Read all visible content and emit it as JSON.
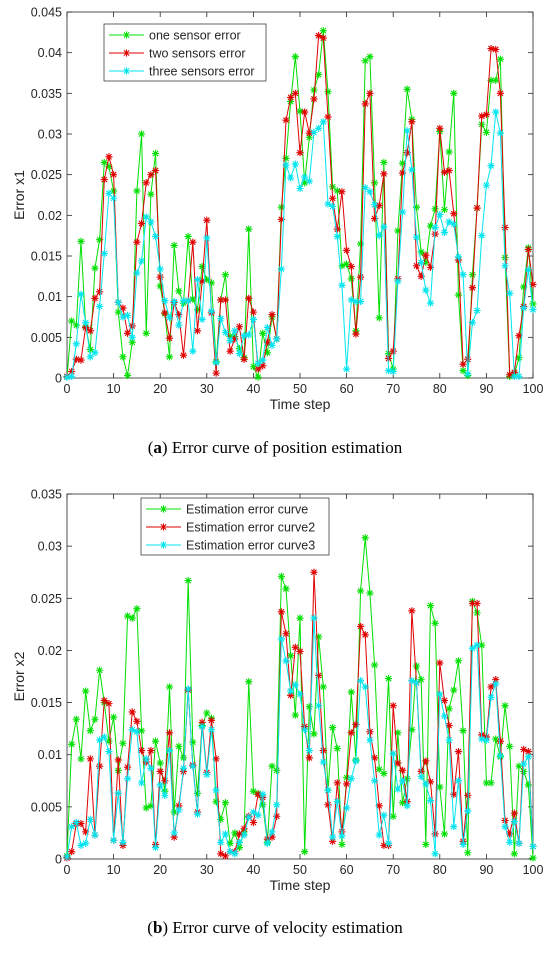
{
  "captions": [
    {
      "tag": "a",
      "text": "Error curve of position estimation"
    },
    {
      "tag": "b",
      "text": "Error curve of velocity estimation"
    }
  ],
  "colors": {
    "green": "#00e000",
    "red": "#e00000",
    "cyan": "#00e5ee",
    "axis": "#262626"
  },
  "chart_data": [
    {
      "type": "line",
      "xlabel": "Time step",
      "ylabel": "Error x1",
      "xlim": [
        0,
        100
      ],
      "ylim": [
        0,
        0.045
      ],
      "xticks": [
        0,
        10,
        20,
        30,
        40,
        50,
        60,
        70,
        80,
        90,
        100
      ],
      "yticks": [
        0,
        0.005,
        0.01,
        0.015,
        0.02,
        0.025,
        0.03,
        0.035,
        0.04,
        0.045
      ],
      "ytick_labels": [
        "0",
        "0.005",
        "0.01",
        "0.015",
        "0.02",
        "0.025",
        "0.03",
        "0.035",
        "0.04",
        "0.045"
      ],
      "legend_position": "top-left",
      "grid": false,
      "series": [
        {
          "name": "one sensor error",
          "color": "green",
          "values": [
            0.0001,
            0.007,
            0.0065,
            0.0168,
            0.0063,
            0.0035,
            0.0135,
            0.017,
            0.0265,
            0.026,
            0.023,
            0.0081,
            0.0026,
            0.0003,
            0.0044,
            0.023,
            0.03,
            0.0055,
            0.0226,
            0.0276,
            0.0113,
            0.0079,
            0.0026,
            0.0163,
            0.0107,
            0.0092,
            0.0174,
            0.0097,
            0.0084,
            0.0137,
            0.0121,
            0.0117,
            0.002,
            0.0096,
            0.0127,
            0.0051,
            0.0051,
            0.0036,
            0.0025,
            0.0183,
            0.0014,
            0.0001,
            0.0055,
            0.0031,
            0.0075,
            0.0048,
            0.021,
            0.027,
            0.034,
            0.0395,
            0.0328,
            0.024,
            0.0296,
            0.0354,
            0.0373,
            0.0427,
            0.0352,
            0.0235,
            0.023,
            0.0138,
            0.014,
            0.0122,
            0.0058,
            0.0165,
            0.039,
            0.0395,
            0.024,
            0.0074,
            0.0265,
            0.003,
            0.0011,
            0.0181,
            0.0264,
            0.0355,
            0.0318,
            0.021,
            0.0155,
            0.0142,
            0.0187,
            0.0208,
            0.0303,
            0.0207,
            0.0278,
            0.035,
            0.0102,
            0.0009,
            0.0003,
            0.0127,
            0.0209,
            0.0312,
            0.0302,
            0.0366,
            0.0366,
            0.0392,
            0.0148,
            0.0002,
            0.0005,
            0.0025,
            0.0112,
            0.016,
            0.0091
          ]
        },
        {
          "name": "two sensors error",
          "color": "red",
          "values": [
            0.0002,
            0.0008,
            0.0023,
            0.0022,
            0.0062,
            0.0058,
            0.0098,
            0.0106,
            0.0244,
            0.0272,
            0.025,
            0.0093,
            0.0086,
            0.0055,
            0.0064,
            0.0167,
            0.019,
            0.024,
            0.025,
            0.0255,
            0.0124,
            0.008,
            0.0049,
            0.0093,
            0.0078,
            0.0028,
            0.0095,
            0.0167,
            0.0058,
            0.0119,
            0.0194,
            0.008,
            0.0006,
            0.0096,
            0.0096,
            0.0033,
            0.0048,
            0.0063,
            0.0023,
            0.0098,
            0.0081,
            0.0011,
            0.0015,
            0.0044,
            0.0078,
            0.0048,
            0.0195,
            0.0317,
            0.0345,
            0.035,
            0.0277,
            0.0327,
            0.0301,
            0.0343,
            0.0421,
            0.0418,
            0.0321,
            0.0221,
            0.0183,
            0.0229,
            0.0157,
            0.0137,
            0.0054,
            0.0124,
            0.0337,
            0.035,
            0.0196,
            0.0212,
            0.0251,
            0.0024,
            0.0033,
            0.0122,
            0.0252,
            0.0277,
            0.0315,
            0.0138,
            0.0125,
            0.0151,
            0.0136,
            0.0177,
            0.0307,
            0.0253,
            0.0255,
            0.0202,
            0.0145,
            0.0017,
            0.0023,
            0.0111,
            0.0209,
            0.0322,
            0.0324,
            0.0405,
            0.0404,
            0.035,
            0.0185,
            0.0004,
            0.0007,
            0.0052,
            0.0088,
            0.0158,
            0.0115
          ]
        },
        {
          "name": "three sensors error",
          "color": "cyan",
          "values": [
            0.0001,
            0.0002,
            0.0042,
            0.0103,
            0.0068,
            0.0026,
            0.0031,
            0.0088,
            0.0153,
            0.0227,
            0.0221,
            0.0093,
            0.0075,
            0.0077,
            0.005,
            0.0129,
            0.0144,
            0.0198,
            0.0192,
            0.0174,
            0.0134,
            0.0095,
            0.0074,
            0.0094,
            0.0065,
            0.0095,
            0.0095,
            0.0033,
            0.0121,
            0.0072,
            0.0172,
            0.0082,
            0.0019,
            0.0073,
            0.0056,
            0.0046,
            0.0058,
            0.003,
            0.0052,
            0.0053,
            0.0072,
            0.0018,
            0.0022,
            0.0062,
            0.004,
            0.0048,
            0.0134,
            0.0262,
            0.0246,
            0.0263,
            0.0233,
            0.0247,
            0.0242,
            0.0302,
            0.0307,
            0.0315,
            0.0214,
            0.0211,
            0.0174,
            0.0114,
            0.0011,
            0.0096,
            0.0094,
            0.0094,
            0.0234,
            0.0229,
            0.0213,
            0.0175,
            0.0186,
            0.0009,
            0.0008,
            0.0119,
            0.0204,
            0.0304,
            0.0256,
            0.0173,
            0.0142,
            0.0108,
            0.0092,
            0.0185,
            0.0201,
            0.0179,
            0.0192,
            0.0189,
            0.0149,
            0.0127,
            0.0005,
            0.0068,
            0.0083,
            0.0175,
            0.0237,
            0.0261,
            0.0327,
            0.0301,
            0.0138,
            0.0104,
            0.0002,
            0.0002,
            0.0086,
            0.0133,
            0.0084
          ]
        }
      ]
    },
    {
      "type": "line",
      "xlabel": "Time step",
      "ylabel": "Error x2",
      "xlim": [
        0,
        100
      ],
      "ylim": [
        0,
        0.035
      ],
      "xticks": [
        0,
        10,
        20,
        30,
        40,
        50,
        60,
        70,
        80,
        90,
        100
      ],
      "yticks": [
        0,
        0.005,
        0.01,
        0.015,
        0.02,
        0.025,
        0.03,
        0.035
      ],
      "ytick_labels": [
        "0",
        "0.005",
        "0.01",
        "0.015",
        "0.02",
        "0.025",
        "0.03",
        "0.035"
      ],
      "legend_position": "top-center",
      "grid": false,
      "series": [
        {
          "name": "Estimation error curve",
          "color": "green",
          "values": [
            0.0003,
            0.011,
            0.0134,
            0.0096,
            0.0161,
            0.0123,
            0.0134,
            0.0181,
            0.015,
            0.0113,
            0.0136,
            0.0085,
            0.0111,
            0.0233,
            0.0231,
            0.024,
            0.0123,
            0.0049,
            0.0051,
            0.0113,
            0.0092,
            0.0065,
            0.0165,
            0.0045,
            0.0108,
            0.0097,
            0.0267,
            0.0112,
            0.0063,
            0.0128,
            0.014,
            0.0135,
            0.0055,
            0.0038,
            0.0054,
            0.0015,
            0.0025,
            0.0011,
            0.0026,
            0.017,
            0.0065,
            0.0063,
            0.0052,
            0.0016,
            0.0089,
            0.0085,
            0.0271,
            0.0259,
            0.0195,
            0.0138,
            0.0231,
            0.0007,
            0.0146,
            0.012,
            0.0213,
            0.0165,
            0.0066,
            0.0126,
            0.0106,
            0.0014,
            0.0078,
            0.016,
            0.0095,
            0.0257,
            0.0308,
            0.0255,
            0.0186,
            0.0086,
            0.0082,
            0.0173,
            0.0041,
            0.0121,
            0.0054,
            0.0077,
            0.0124,
            0.0185,
            0.0172,
            0.0014,
            0.0243,
            0.0226,
            0.0069,
            0.0024,
            0.0144,
            0.0162,
            0.019,
            0.0123,
            0.0006,
            0.0247,
            0.0236,
            0.0205,
            0.0073,
            0.0073,
            0.0115,
            0.0098,
            0.0147,
            0.0108,
            0.0005,
            0.0089,
            0.0084,
            0.0071,
            0.0001
          ]
        },
        {
          "name": "Estimation error curve2",
          "color": "red",
          "values": [
            0.0001,
            0.0007,
            0.0034,
            0.0034,
            0.0026,
            0.0096,
            0.0023,
            0.0089,
            0.0152,
            0.0149,
            0.0018,
            0.0095,
            0.0013,
            0.0088,
            0.0141,
            0.0132,
            0.0104,
            0.0093,
            0.0104,
            0.0014,
            0.0084,
            0.0075,
            0.0121,
            0.0021,
            0.0051,
            0.0084,
            0.0162,
            0.009,
            0.0045,
            0.0131,
            0.0083,
            0.0133,
            0.0096,
            0.0005,
            0.0003,
            0.0007,
            0.0007,
            0.0024,
            0.0029,
            0.0041,
            0.0035,
            0.0062,
            0.0059,
            0.0019,
            0.0021,
            0.0041,
            0.0237,
            0.0216,
            0.0157,
            0.0203,
            0.0199,
            0.0127,
            0.0097,
            0.0275,
            0.0176,
            0.0104,
            0.0052,
            0.0017,
            0.0073,
            0.0026,
            0.0072,
            0.0121,
            0.0129,
            0.0223,
            0.0215,
            0.0122,
            0.0097,
            0.0051,
            0.0013,
            0.0013,
            0.0147,
            0.0092,
            0.0085,
            0.0055,
            0.0238,
            0.0169,
            0.0084,
            0.0094,
            0.0074,
            0.0024,
            0.0188,
            0.0152,
            0.0128,
            0.0062,
            0.0103,
            0.0017,
            0.0061,
            0.0245,
            0.0245,
            0.0119,
            0.0117,
            0.0165,
            0.0172,
            0.0113,
            0.0037,
            0.0024,
            0.0044,
            0.0015,
            0.0105,
            0.0103,
            0.0012
          ]
        },
        {
          "name": "Estimation error curve3",
          "color": "cyan",
          "values": [
            0.0002,
            0.0031,
            0.0035,
            0.0013,
            0.0015,
            0.0038,
            0.0023,
            0.0114,
            0.0117,
            0.0103,
            0.0018,
            0.0063,
            0.0016,
            0.0077,
            0.0124,
            0.0122,
            0.0073,
            0.0096,
            0.0087,
            0.0011,
            0.0071,
            0.0061,
            0.0104,
            0.0025,
            0.0047,
            0.0087,
            0.0163,
            0.0089,
            0.0043,
            0.0127,
            0.0081,
            0.0124,
            0.0066,
            0.0016,
            0.0024,
            0.0007,
            0.0005,
            0.0016,
            0.0023,
            0.004,
            0.0045,
            0.0042,
            0.0062,
            0.0015,
            0.0026,
            0.0052,
            0.0211,
            0.019,
            0.0161,
            0.0167,
            0.0158,
            0.0124,
            0.0104,
            0.0231,
            0.0147,
            0.0093,
            0.0066,
            0.0021,
            0.0055,
            0.0022,
            0.0049,
            0.0077,
            0.0094,
            0.0171,
            0.0165,
            0.0114,
            0.0075,
            0.0023,
            0.0042,
            0.0015,
            0.0101,
            0.0067,
            0.0075,
            0.0051,
            0.0171,
            0.0169,
            0.0079,
            0.0072,
            0.0056,
            0.0005,
            0.0158,
            0.0137,
            0.0114,
            0.0031,
            0.0075,
            0.0014,
            0.0046,
            0.0202,
            0.0205,
            0.0115,
            0.0114,
            0.0155,
            0.0168,
            0.0099,
            0.0031,
            0.0016,
            0.0036,
            0.0015,
            0.0091,
            0.0098,
            0.0012
          ]
        }
      ]
    }
  ]
}
